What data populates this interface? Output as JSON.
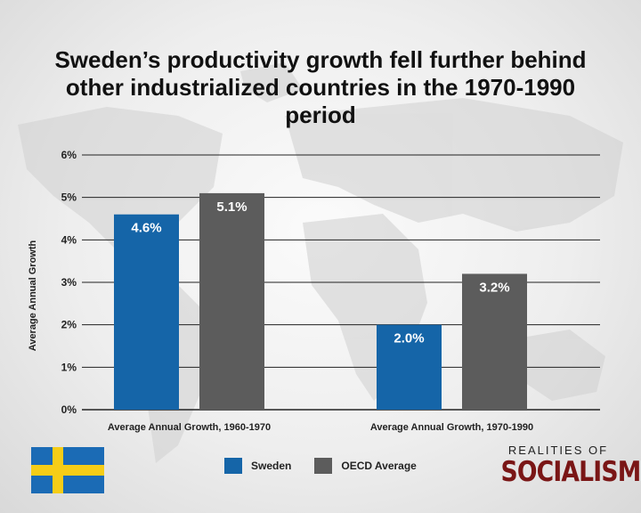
{
  "title": "Sweden’s productivity growth fell further behind other industrialized countries in the 1970-1990 period",
  "chart_data": {
    "type": "bar",
    "title": "Sweden’s productivity growth fell further behind other industrialized countries in the 1970-1990 period",
    "categories": [
      "Average Annual Growth, 1960-1970",
      "Average Annual Growth, 1970-1990"
    ],
    "series": [
      {
        "name": "Sweden",
        "values": [
          4.6,
          2.0
        ],
        "labels": [
          "4.6%",
          "2.0%"
        ],
        "color": "#1565a8"
      },
      {
        "name": "OECD Average",
        "values": [
          5.1,
          3.2
        ],
        "labels": [
          "5.1%",
          "3.2%"
        ],
        "color": "#5c5c5c"
      }
    ],
    "ylabel": "Average Annual Growth",
    "xlabel": "",
    "ylim": [
      0,
      6
    ],
    "yticks": [
      "0%",
      "1%",
      "2%",
      "3%",
      "4%",
      "5%",
      "6%"
    ],
    "grid": true,
    "legend": "bottom-center"
  },
  "legend": {
    "sweden": "Sweden",
    "oecd": "OECD Average"
  },
  "brand": {
    "top": "REALITIES OF",
    "main": "SOCIALISM"
  },
  "colors": {
    "sweden": "#1565a8",
    "oecd": "#5c5c5c",
    "brand": "#7a1616",
    "flag_blue": "#1b6bb5",
    "flag_yellow": "#f6cd17"
  },
  "icons": {
    "flag": "sweden-flag-icon"
  }
}
